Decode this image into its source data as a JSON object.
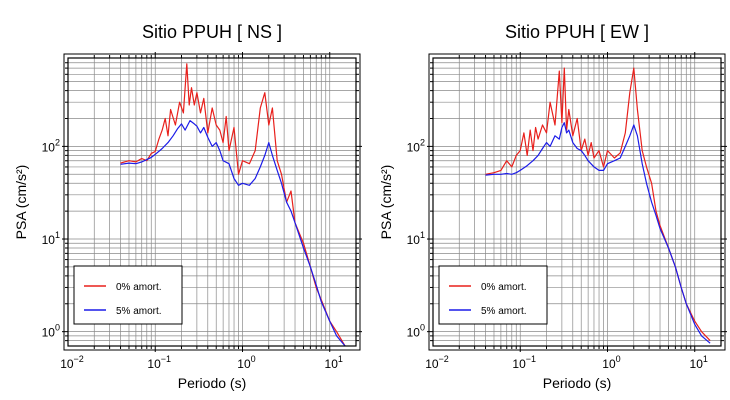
{
  "chart_data": [
    {
      "type": "line",
      "title": "Sitio PPUH [ NS ]",
      "xlabel": "Periodo (s)",
      "ylabel": "PSA (cm/s²)",
      "xscale": "log",
      "yscale": "log",
      "xlim": [
        0.01,
        20
      ],
      "ylim": [
        0.7,
        900
      ],
      "grid": true,
      "legend_position": "bottom-left",
      "x_ticks": [
        {
          "base": "10",
          "exp": "−2"
        },
        {
          "base": "10",
          "exp": "−1"
        },
        {
          "base": "10",
          "exp": "0"
        },
        {
          "base": "10",
          "exp": "1"
        }
      ],
      "y_ticks": [
        {
          "base": "10",
          "exp": "0"
        },
        {
          "base": "10",
          "exp": "1"
        },
        {
          "base": "10",
          "exp": "2"
        }
      ],
      "series": [
        {
          "name": "0% amort.",
          "color": "#e8201c",
          "x": [
            0.04,
            0.05,
            0.06,
            0.07,
            0.08,
            0.09,
            0.1,
            0.11,
            0.12,
            0.13,
            0.14,
            0.15,
            0.17,
            0.19,
            0.21,
            0.23,
            0.245,
            0.26,
            0.28,
            0.3,
            0.33,
            0.36,
            0.4,
            0.45,
            0.5,
            0.55,
            0.6,
            0.65,
            0.7,
            0.8,
            0.9,
            1.0,
            1.2,
            1.4,
            1.6,
            1.8,
            2.0,
            2.2,
            2.5,
            2.8,
            3.2,
            3.6,
            4.0,
            5.0,
            6.0,
            7.0,
            8.0,
            10.0,
            12.0,
            15.0
          ],
          "y": [
            66,
            70,
            68,
            74,
            70,
            84,
            88,
            120,
            150,
            200,
            130,
            250,
            170,
            300,
            230,
            780,
            280,
            430,
            280,
            380,
            230,
            330,
            140,
            260,
            170,
            150,
            110,
            210,
            90,
            160,
            50,
            70,
            65,
            90,
            260,
            380,
            170,
            260,
            70,
            50,
            25,
            33,
            15,
            9,
            5,
            3,
            2.2,
            1.3,
            1.0,
            0.7
          ]
        },
        {
          "name": "5% amort.",
          "color": "#1c1ce8",
          "x": [
            0.04,
            0.05,
            0.06,
            0.07,
            0.08,
            0.09,
            0.1,
            0.12,
            0.14,
            0.16,
            0.18,
            0.2,
            0.22,
            0.25,
            0.28,
            0.3,
            0.33,
            0.36,
            0.4,
            0.45,
            0.5,
            0.55,
            0.6,
            0.7,
            0.8,
            0.9,
            1.0,
            1.2,
            1.4,
            1.6,
            1.8,
            2.0,
            2.2,
            2.5,
            2.8,
            3.2,
            3.6,
            4.0,
            5.0,
            6.0,
            7.0,
            8.0,
            10.0,
            12.0,
            15.0
          ],
          "y": [
            64,
            66,
            65,
            68,
            72,
            76,
            82,
            95,
            110,
            130,
            155,
            175,
            150,
            190,
            175,
            165,
            140,
            160,
            125,
            100,
            110,
            90,
            70,
            65,
            45,
            38,
            40,
            38,
            45,
            60,
            80,
            110,
            80,
            55,
            40,
            25,
            20,
            15,
            8,
            5,
            3.2,
            2.1,
            1.3,
            0.9,
            0.7
          ]
        }
      ]
    },
    {
      "type": "line",
      "title": "Sitio PPUH [ EW ]",
      "xlabel": "Periodo (s)",
      "ylabel": "PSA (cm/s²)",
      "xscale": "log",
      "yscale": "log",
      "xlim": [
        0.01,
        20
      ],
      "ylim": [
        0.7,
        900
      ],
      "grid": true,
      "legend_position": "bottom-left",
      "x_ticks": [
        {
          "base": "10",
          "exp": "−2"
        },
        {
          "base": "10",
          "exp": "−1"
        },
        {
          "base": "10",
          "exp": "0"
        },
        {
          "base": "10",
          "exp": "1"
        }
      ],
      "y_ticks": [
        {
          "base": "10",
          "exp": "0"
        },
        {
          "base": "10",
          "exp": "1"
        },
        {
          "base": "10",
          "exp": "2"
        }
      ],
      "series": [
        {
          "name": "0% amort.",
          "color": "#e8201c",
          "x": [
            0.04,
            0.05,
            0.06,
            0.07,
            0.08,
            0.09,
            0.1,
            0.11,
            0.12,
            0.13,
            0.14,
            0.15,
            0.16,
            0.18,
            0.2,
            0.22,
            0.25,
            0.28,
            0.3,
            0.32,
            0.34,
            0.36,
            0.4,
            0.45,
            0.5,
            0.55,
            0.6,
            0.65,
            0.7,
            0.8,
            0.9,
            1.0,
            1.2,
            1.4,
            1.6,
            1.8,
            2.0,
            2.2,
            2.5,
            2.8,
            3.2,
            3.6,
            4.0,
            5.0,
            6.0,
            7.0,
            8.0,
            10.0,
            12.0,
            15.0
          ],
          "y": [
            50,
            52,
            55,
            70,
            60,
            80,
            90,
            140,
            80,
            150,
            90,
            160,
            120,
            170,
            140,
            300,
            170,
            650,
            180,
            700,
            150,
            250,
            130,
            200,
            90,
            120,
            80,
            110,
            75,
            90,
            60,
            90,
            75,
            85,
            140,
            380,
            700,
            250,
            90,
            60,
            40,
            20,
            14,
            8,
            5,
            3,
            2.0,
            1.3,
            1.0,
            0.8
          ]
        },
        {
          "name": "5% amort.",
          "color": "#1c1ce8",
          "x": [
            0.04,
            0.05,
            0.06,
            0.07,
            0.08,
            0.09,
            0.1,
            0.12,
            0.14,
            0.16,
            0.18,
            0.2,
            0.22,
            0.25,
            0.28,
            0.3,
            0.32,
            0.34,
            0.36,
            0.4,
            0.45,
            0.5,
            0.55,
            0.6,
            0.7,
            0.8,
            0.9,
            1.0,
            1.2,
            1.4,
            1.6,
            1.8,
            2.0,
            2.2,
            2.5,
            2.8,
            3.2,
            3.6,
            4.0,
            5.0,
            6.0,
            7.0,
            8.0,
            10.0,
            12.0,
            15.0
          ],
          "y": [
            49,
            50,
            50,
            51,
            50,
            52,
            55,
            62,
            70,
            80,
            95,
            110,
            100,
            130,
            120,
            160,
            180,
            140,
            150,
            110,
            95,
            90,
            80,
            70,
            60,
            55,
            55,
            65,
            70,
            75,
            100,
            130,
            170,
            130,
            65,
            40,
            25,
            18,
            13,
            8,
            5,
            3,
            2.0,
            1.2,
            0.9,
            0.75
          ]
        }
      ]
    }
  ]
}
